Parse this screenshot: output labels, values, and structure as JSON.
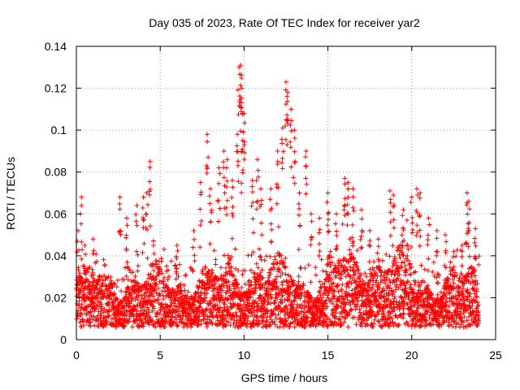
{
  "chart_data": {
    "type": "scatter",
    "title": "Day 035 of 2023, Rate Of TEC Index for receiver yar2",
    "xlabel": "GPS time / hours",
    "ylabel": "ROTI / TECUs",
    "xlim": [
      0,
      25
    ],
    "ylim": [
      0,
      0.14
    ],
    "xticks": [
      0,
      5,
      10,
      15,
      20,
      25
    ],
    "yticks": [
      0,
      0.02,
      0.04,
      0.06,
      0.08,
      0.1,
      0.12,
      0.14
    ],
    "xtick_labels": [
      "0",
      "5",
      "10",
      "15",
      "20",
      "25"
    ],
    "ytick_labels": [
      "0",
      "0.02",
      "0.04",
      "0.06",
      "0.08",
      "0.1",
      "0.12",
      "0.14"
    ],
    "grid": true,
    "legend": "none",
    "marker": "+",
    "color": "#ff0000",
    "series": [
      {
        "name": "ROTI",
        "note": "dense band of ROTI values between about 0.005 and 0.04 TECU/min across 0-24 h; listed points are the visible peaks",
        "x": [
          0.1,
          0.3,
          0.5,
          1.0,
          2.6,
          3.0,
          3.6,
          4.0,
          4.2,
          4.4,
          4.6,
          6.0,
          7.0,
          7.4,
          7.8,
          8.0,
          8.5,
          8.8,
          9.0,
          9.3,
          9.6,
          9.7,
          9.8,
          9.85,
          9.9,
          10.0,
          10.5,
          10.8,
          11.0,
          11.6,
          12.0,
          12.3,
          12.5,
          12.6,
          12.8,
          13.0,
          13.3,
          13.7,
          14.0,
          14.5,
          15.0,
          15.5,
          16.0,
          16.2,
          16.5,
          17.0,
          17.5,
          18.0,
          18.7,
          18.9,
          19.5,
          20.0,
          20.3,
          20.5,
          21.0,
          21.5,
          22.0,
          22.5,
          23.0,
          23.3,
          23.4,
          23.8
        ],
        "y": [
          0.052,
          0.068,
          0.045,
          0.048,
          0.068,
          0.058,
          0.064,
          0.068,
          0.07,
          0.085,
          0.045,
          0.045,
          0.052,
          0.075,
          0.098,
          0.072,
          0.082,
          0.09,
          0.086,
          0.076,
          0.098,
          0.13,
          0.131,
          0.12,
          0.095,
          0.108,
          0.076,
          0.086,
          0.072,
          0.072,
          0.09,
          0.101,
          0.123,
          0.118,
          0.11,
          0.1,
          0.07,
          0.09,
          0.06,
          0.058,
          0.07,
          0.06,
          0.077,
          0.075,
          0.072,
          0.062,
          0.052,
          0.048,
          0.071,
          0.069,
          0.062,
          0.068,
          0.072,
          0.07,
          0.058,
          0.052,
          0.05,
          0.042,
          0.045,
          0.07,
          0.066,
          0.053
        ]
      }
    ]
  }
}
